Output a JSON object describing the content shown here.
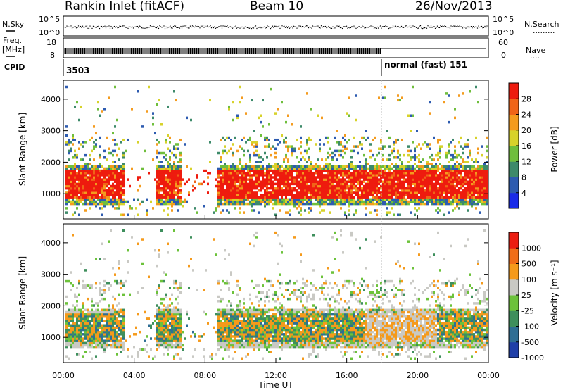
{
  "header": {
    "station": "Rankin Inlet (fitACF)",
    "beam": "Beam 10",
    "date": "26/Nov/2013"
  },
  "status_panels": {
    "nsky_label": "N.Sky",
    "nsky_top": "10^5",
    "nsky_bottom": "10^0",
    "nsearch_label": "N.Search",
    "nsearch_top": "10^5",
    "nsearch_bottom": "10^0",
    "freq_label_1": "Freq.",
    "freq_label_2": "[MHz]",
    "freq_top": "18",
    "freq_bottom": "8",
    "nave_label": "Nave",
    "nave_top": "60",
    "nave_bottom": "0",
    "cpid_label": "CPID",
    "cpid_value_1": "3503",
    "cpid_value_2": "normal (fast)  151"
  },
  "chart_data": [
    {
      "type": "heatmap",
      "panel": "power",
      "ylabel": "Slant Range [km]",
      "yticks": [
        1000,
        2000,
        3000,
        4000
      ],
      "ylim": [
        200,
        4600
      ],
      "xlim_hours": [
        0,
        24
      ],
      "colorbar_label": "Power [dB]",
      "colorbar_ticks": [
        "28",
        "24",
        "20",
        "16",
        "12",
        "8",
        "4"
      ],
      "colorbar_colors": [
        "#1a2be8",
        "#2d5bb0",
        "#3d8a6a",
        "#6fbe3c",
        "#d7d22a",
        "#f49b1e",
        "#f06418",
        "#ee1b0e"
      ],
      "dominant_level_db": 28,
      "main_echo_band_km": [
        800,
        1700
      ]
    },
    {
      "type": "heatmap",
      "panel": "velocity",
      "ylabel": "Slant Range [km]",
      "yticks": [
        1000,
        2000,
        3000,
        4000
      ],
      "ylim": [
        200,
        4600
      ],
      "xlim_hours": [
        0,
        24
      ],
      "xlabel": "Time UT",
      "xticks": [
        "00:00",
        "04:00",
        "08:00",
        "12:00",
        "16:00",
        "20:00",
        "00:00"
      ],
      "colorbar_label": "Velocity [m s⁻¹]",
      "colorbar_ticks": [
        "1000",
        "500",
        "100",
        "25",
        "-25",
        "-100",
        "-500",
        "-1000"
      ],
      "colorbar_colors": [
        "#1f3fa8",
        "#2e6e94",
        "#3e8f5c",
        "#6cc23a",
        "#c9c9c4",
        "#f59a1b",
        "#f06d18",
        "#ec1c10"
      ],
      "main_echo_band_km": [
        800,
        1700
      ]
    }
  ]
}
